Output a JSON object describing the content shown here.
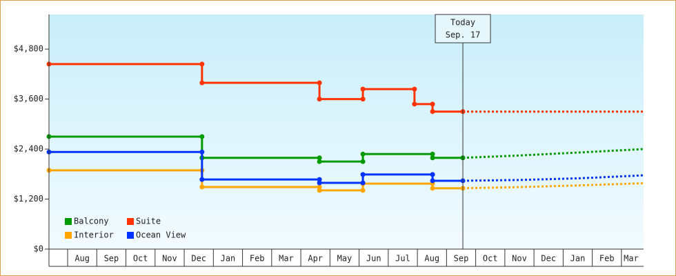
{
  "chart_data": {
    "type": "step-line",
    "xlim": [
      -0.64,
      19.76
    ],
    "ylim": [
      0,
      5630
    ],
    "yticks": [
      {
        "value": 0,
        "label": "$0"
      },
      {
        "value": 1200,
        "label": "$1,200"
      },
      {
        "value": 2400,
        "label": "$2,400"
      },
      {
        "value": 3600,
        "label": "$3,600"
      },
      {
        "value": 4800,
        "label": "$4,800"
      }
    ],
    "xticks": [
      {
        "value": 0.5,
        "label": "Aug"
      },
      {
        "value": 1.5,
        "label": "Sep"
      },
      {
        "value": 2.5,
        "label": "Oct"
      },
      {
        "value": 3.5,
        "label": "Nov"
      },
      {
        "value": 4.5,
        "label": "Dec"
      },
      {
        "value": 5.5,
        "label": "Jan"
      },
      {
        "value": 6.5,
        "label": "Feb"
      },
      {
        "value": 7.5,
        "label": "Mar"
      },
      {
        "value": 8.5,
        "label": "Apr"
      },
      {
        "value": 9.5,
        "label": "May"
      },
      {
        "value": 10.5,
        "label": "Jun"
      },
      {
        "value": 11.5,
        "label": "Jul"
      },
      {
        "value": 12.5,
        "label": "Aug"
      },
      {
        "value": 13.5,
        "label": "Sep"
      },
      {
        "value": 14.5,
        "label": "Oct"
      },
      {
        "value": 15.5,
        "label": "Nov"
      },
      {
        "value": 16.5,
        "label": "Dec"
      },
      {
        "value": 17.5,
        "label": "Jan"
      },
      {
        "value": 18.5,
        "label": "Feb"
      },
      {
        "value": 19.5,
        "label": "Mar"
      }
    ],
    "grid": false,
    "legend": "lower left",
    "annotation": {
      "x": 13.56,
      "lines": [
        "Today",
        "Sep. 17"
      ]
    },
    "series": [
      {
        "name": "Balcony",
        "color": "#009900",
        "x": [
          -0.64,
          4.61,
          4.61,
          8.64,
          8.64,
          10.13,
          10.13,
          12.52,
          12.52,
          13.56
        ],
        "values": [
          2700,
          2700,
          2190,
          2190,
          2100,
          2100,
          2280,
          2280,
          2190,
          2190
        ],
        "forecast": {
          "x": [
            13.56,
            15.6,
            17.6,
            19.76
          ],
          "values": [
            2190,
            2250,
            2320,
            2400
          ]
        }
      },
      {
        "name": "Suite",
        "color": "#ff3300",
        "x": [
          -0.64,
          4.61,
          4.61,
          8.64,
          8.64,
          10.13,
          10.13,
          11.9,
          11.9,
          12.52,
          12.52,
          13.56
        ],
        "values": [
          4440,
          4440,
          3990,
          3990,
          3600,
          3600,
          3840,
          3840,
          3480,
          3480,
          3300,
          3300
        ],
        "forecast": {
          "x": [
            13.56,
            19.76
          ],
          "values": [
            3300,
            3300
          ]
        }
      },
      {
        "name": "Interior",
        "color": "#ffa500",
        "x": [
          -0.64,
          4.61,
          4.61,
          8.64,
          8.64,
          10.13,
          10.13,
          12.52,
          12.52,
          13.56
        ],
        "values": [
          1890,
          1890,
          1490,
          1490,
          1410,
          1410,
          1570,
          1570,
          1460,
          1460
        ],
        "forecast": {
          "x": [
            13.56,
            15.6,
            17.6,
            19.76
          ],
          "values": [
            1460,
            1490,
            1530,
            1580
          ]
        }
      },
      {
        "name": "Ocean View",
        "color": "#0033ff",
        "x": [
          -0.64,
          4.61,
          4.61,
          8.64,
          8.64,
          10.13,
          10.13,
          12.52,
          12.52,
          13.56
        ],
        "values": [
          2330,
          2330,
          1670,
          1670,
          1590,
          1590,
          1790,
          1790,
          1640,
          1640
        ],
        "forecast": {
          "x": [
            13.56,
            15.6,
            17.6,
            19.76
          ],
          "values": [
            1640,
            1660,
            1700,
            1770
          ]
        }
      }
    ]
  }
}
